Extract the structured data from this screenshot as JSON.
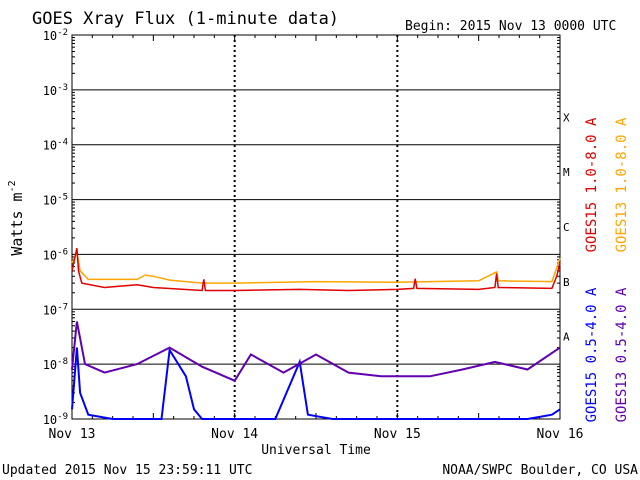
{
  "title": "GOES Xray Flux (1-minute data)",
  "begin_label": "Begin:  2015 Nov 13 0000 UTC",
  "footer_left": "Updated 2015 Nov 15 23:59:11 UTC",
  "footer_right": "NOAA/SWPC Boulder, CO USA",
  "chart_data": {
    "type": "line",
    "title": "GOES Xray Flux (1-minute data)",
    "xlabel": "Universal Time",
    "ylabel": "Watts m",
    "ylabel_exponent": "-2",
    "yscale": "log",
    "ylim": [
      1e-09,
      0.01
    ],
    "grid": true,
    "x_ticks": [
      "Nov 13",
      "Nov 14",
      "Nov 15",
      "Nov 16"
    ],
    "xlim_days": [
      0,
      3
    ],
    "y_ticks": [
      {
        "base": "10",
        "exp": "-2",
        "value": 0.01
      },
      {
        "base": "10",
        "exp": "-3",
        "value": 0.001
      },
      {
        "base": "10",
        "exp": "-4",
        "value": 0.0001
      },
      {
        "base": "10",
        "exp": "-5",
        "value": 1e-05
      },
      {
        "base": "10",
        "exp": "-6",
        "value": 1e-06
      },
      {
        "base": "10",
        "exp": "-7",
        "value": 1e-07
      },
      {
        "base": "10",
        "exp": "-8",
        "value": 1e-08
      },
      {
        "base": "10",
        "exp": "-9",
        "value": 1e-09
      }
    ],
    "flare_classes": [
      {
        "label": "X",
        "value": 0.0001
      },
      {
        "label": "M",
        "value": 1e-05
      },
      {
        "label": "C",
        "value": 1e-06
      },
      {
        "label": "B",
        "value": 1e-07
      },
      {
        "label": "A",
        "value": 1e-08
      }
    ],
    "legend_placement": "right, vertical",
    "series": [
      {
        "name": "GOES15 1.0-8.0 A",
        "color": "#e00000",
        "points": [
          [
            0,
            5e-07
          ],
          [
            0.03,
            1.3e-06
          ],
          [
            0.04,
            5e-07
          ],
          [
            0.06,
            3e-07
          ],
          [
            0.2,
            2.5e-07
          ],
          [
            0.4,
            2.8e-07
          ],
          [
            0.5,
            2.5e-07
          ],
          [
            0.8,
            2.2e-07
          ],
          [
            0.81,
            3.5e-07
          ],
          [
            0.82,
            2.2e-07
          ],
          [
            1.0,
            2.2e-07
          ],
          [
            1.4,
            2.3e-07
          ],
          [
            1.7,
            2.2e-07
          ],
          [
            2.0,
            2.3e-07
          ],
          [
            2.1,
            2.4e-07
          ],
          [
            2.11,
            3.6e-07
          ],
          [
            2.12,
            2.4e-07
          ],
          [
            2.5,
            2.3e-07
          ],
          [
            2.6,
            2.5e-07
          ],
          [
            2.61,
            4.5e-07
          ],
          [
            2.62,
            2.5e-07
          ],
          [
            2.95,
            2.4e-07
          ],
          [
            2.98,
            4e-07
          ],
          [
            3.0,
            7e-07
          ]
        ]
      },
      {
        "name": "GOES13 1.0-8.0 A",
        "color": "#ffa500",
        "points": [
          [
            0,
            7e-07
          ],
          [
            0.03,
            1.1e-06
          ],
          [
            0.05,
            5e-07
          ],
          [
            0.1,
            3.5e-07
          ],
          [
            0.4,
            3.5e-07
          ],
          [
            0.45,
            4.2e-07
          ],
          [
            0.5,
            4e-07
          ],
          [
            0.6,
            3.4e-07
          ],
          [
            0.8,
            3e-07
          ],
          [
            1.0,
            3e-07
          ],
          [
            1.5,
            3.2e-07
          ],
          [
            2.0,
            3.1e-07
          ],
          [
            2.5,
            3.3e-07
          ],
          [
            2.61,
            4.8e-07
          ],
          [
            2.62,
            3.3e-07
          ],
          [
            2.95,
            3.2e-07
          ],
          [
            3.0,
            8.5e-07
          ]
        ]
      },
      {
        "name": "GOES15 0.5-4.0 A",
        "color": "#0000ff",
        "points": [
          [
            0,
            1.5e-09
          ],
          [
            0.03,
            2e-08
          ],
          [
            0.05,
            3e-09
          ],
          [
            0.1,
            1.2e-09
          ],
          [
            0.25,
            1e-09
          ],
          [
            0.55,
            1e-09
          ],
          [
            0.6,
            1.8e-08
          ],
          [
            0.7,
            6e-09
          ],
          [
            0.75,
            1.5e-09
          ],
          [
            0.8,
            1e-09
          ],
          [
            1.25,
            1e-09
          ],
          [
            1.4,
            1.1e-08
          ],
          [
            1.45,
            1.2e-09
          ],
          [
            1.6,
            1e-09
          ],
          [
            2.8,
            1e-09
          ],
          [
            2.95,
            1.2e-09
          ],
          [
            3.0,
            1.5e-09
          ]
        ]
      },
      {
        "name": "GOES13 0.5-4.0 A",
        "color": "#6000b0",
        "points": [
          [
            0,
            8e-09
          ],
          [
            0.03,
            6e-08
          ],
          [
            0.08,
            1e-08
          ],
          [
            0.2,
            7e-09
          ],
          [
            0.4,
            1e-08
          ],
          [
            0.6,
            2e-08
          ],
          [
            0.8,
            9e-09
          ],
          [
            1.0,
            5e-09
          ],
          [
            1.1,
            1.5e-08
          ],
          [
            1.3,
            7e-09
          ],
          [
            1.5,
            1.5e-08
          ],
          [
            1.7,
            7e-09
          ],
          [
            1.9,
            6e-09
          ],
          [
            2.2,
            6e-09
          ],
          [
            2.4,
            8e-09
          ],
          [
            2.6,
            1.1e-08
          ],
          [
            2.8,
            8e-09
          ],
          [
            3.0,
            2e-08
          ]
        ]
      }
    ]
  }
}
